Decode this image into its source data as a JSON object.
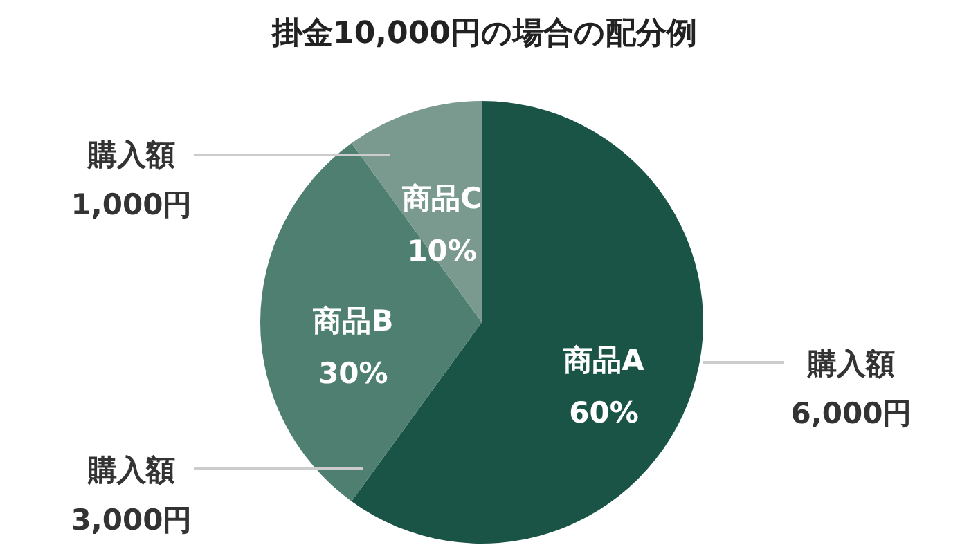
{
  "chart_data": {
    "type": "pie",
    "title": "掛金10,000円の場合の配分例",
    "categories": [
      "商品A",
      "商品B",
      "商品C"
    ],
    "values": [
      60,
      30,
      10
    ],
    "value_labels": [
      "60%",
      "30%",
      "10%"
    ],
    "colors": [
      "#1a5446",
      "#4f7f70",
      "#7a9a90"
    ],
    "annotations": [
      "購入額\n6,000円",
      "購入額\n3,000円",
      "購入額\n1,000円"
    ]
  }
}
